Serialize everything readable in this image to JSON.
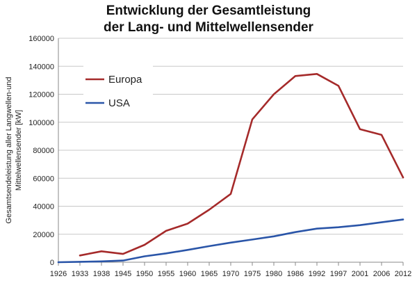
{
  "chart_data": {
    "type": "line",
    "title": [
      "Entwicklung der Gesamtleistung",
      "der Lang- und Mittelwellensender"
    ],
    "ylabel": [
      "Gesamtsendeleistung aller  Langwellen-und",
      "Mittelwellensender [kW]"
    ],
    "xlabel": "",
    "categories": [
      "1926",
      "1933",
      "1938",
      "1945",
      "1950",
      "1955",
      "1960",
      "1965",
      "1970",
      "1975",
      "1980",
      "1986",
      "1992",
      "1997",
      "2001",
      "2006",
      "2012"
    ],
    "ylim": [
      0,
      160000
    ],
    "yticks": [
      "0",
      "20000",
      "40000",
      "60000",
      "80000",
      "100000",
      "120000",
      "140000",
      "160000"
    ],
    "grid": "horizontal",
    "legend_position": "top-left",
    "series": [
      {
        "name": "Europa",
        "color": "#a52a2a",
        "values": [
          null,
          4800,
          7800,
          5900,
          12400,
          22400,
          27600,
          37500,
          48800,
          102000,
          120000,
          133000,
          134500,
          126000,
          95000,
          91000,
          60500
        ]
      },
      {
        "name": "USA",
        "color": "#2a55a8",
        "values": [
          0,
          300,
          600,
          1200,
          4200,
          6300,
          8800,
          11500,
          14000,
          16200,
          18500,
          21500,
          24000,
          25000,
          26500,
          28500,
          30500
        ]
      }
    ]
  }
}
